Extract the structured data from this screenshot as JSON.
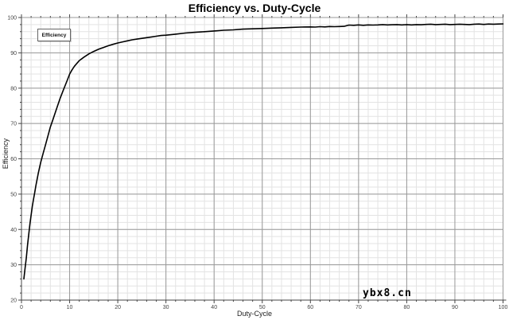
{
  "chart_data": {
    "type": "line",
    "title": "Efficiency vs. Duty-Cycle",
    "xlabel": "Duty-Cycle",
    "ylabel": "Efficiency",
    "xlim": [
      0,
      100
    ],
    "ylim": [
      20,
      100
    ],
    "x_major_ticks": [
      0,
      10,
      20,
      30,
      40,
      50,
      60,
      70,
      80,
      90,
      100
    ],
    "y_major_ticks": [
      20,
      30,
      40,
      50,
      60,
      70,
      80,
      90,
      100
    ],
    "minor_tick_step": 2,
    "grid": true,
    "legend": {
      "position": "top-left",
      "label": "Efficiency"
    },
    "watermark": "ybx8.cn",
    "colors": {
      "line": "#000000",
      "grid_major": "#999999",
      "grid_minor": "#e3e3e3",
      "axis": "#444444",
      "tick_label": "#444444",
      "title": "#000000",
      "background": "#ffffff"
    },
    "series": [
      {
        "name": "Efficiency",
        "points": [
          [
            0.5,
            26
          ],
          [
            0.75,
            29
          ],
          [
            1,
            32
          ],
          [
            1.25,
            35.5
          ],
          [
            1.5,
            38.5
          ],
          [
            1.75,
            41.5
          ],
          [
            2,
            44
          ],
          [
            2.25,
            46.5
          ],
          [
            2.5,
            48.5
          ],
          [
            2.75,
            50.5
          ],
          [
            3,
            52.5
          ],
          [
            3.5,
            56
          ],
          [
            4,
            59
          ],
          [
            4.5,
            61.5
          ],
          [
            5,
            64
          ],
          [
            5.5,
            66.5
          ],
          [
            6,
            69
          ],
          [
            6.5,
            71
          ],
          [
            7,
            73
          ],
          [
            7.5,
            75
          ],
          [
            8,
            77
          ],
          [
            8.5,
            78.8
          ],
          [
            9,
            80.5
          ],
          [
            9.5,
            82.2
          ],
          [
            10,
            84
          ],
          [
            10.5,
            85.2
          ],
          [
            11,
            86.2
          ],
          [
            11.5,
            87
          ],
          [
            12,
            87.8
          ],
          [
            13,
            88.8
          ],
          [
            14,
            89.7
          ],
          [
            15,
            90.4
          ],
          [
            16,
            91
          ],
          [
            17,
            91.5
          ],
          [
            18,
            92
          ],
          [
            19,
            92.4
          ],
          [
            20,
            92.8
          ],
          [
            21,
            93.1
          ],
          [
            22,
            93.4
          ],
          [
            23,
            93.7
          ],
          [
            24,
            93.9
          ],
          [
            25,
            94.1
          ],
          [
            26,
            94.3
          ],
          [
            27,
            94.5
          ],
          [
            28,
            94.7
          ],
          [
            29,
            94.9
          ],
          [
            30,
            95
          ],
          [
            32,
            95.3
          ],
          [
            34,
            95.6
          ],
          [
            36,
            95.8
          ],
          [
            38,
            96
          ],
          [
            40,
            96.2
          ],
          [
            42,
            96.4
          ],
          [
            44,
            96.5
          ],
          [
            46,
            96.7
          ],
          [
            48,
            96.8
          ],
          [
            50,
            96.9
          ],
          [
            52,
            97
          ],
          [
            54,
            97.1
          ],
          [
            56,
            97.2
          ],
          [
            58,
            97.3
          ],
          [
            60,
            97.35
          ],
          [
            61,
            97.3
          ],
          [
            62,
            97.4
          ],
          [
            63,
            97.35
          ],
          [
            64,
            97.45
          ],
          [
            65,
            97.4
          ],
          [
            66,
            97.45
          ],
          [
            67,
            97.5
          ],
          [
            68,
            97.85
          ],
          [
            69,
            97.8
          ],
          [
            70,
            97.9
          ],
          [
            71,
            97.8
          ],
          [
            72,
            97.9
          ],
          [
            73,
            97.85
          ],
          [
            74,
            97.9
          ],
          [
            75,
            98
          ],
          [
            76,
            97.9
          ],
          [
            77,
            97.95
          ],
          [
            78,
            98
          ],
          [
            79,
            97.9
          ],
          [
            80,
            98
          ],
          [
            81,
            97.9
          ],
          [
            82,
            98
          ],
          [
            83,
            97.95
          ],
          [
            84,
            98.05
          ],
          [
            85,
            98.1
          ],
          [
            86,
            98
          ],
          [
            87,
            98.05
          ],
          [
            88,
            98.1
          ],
          [
            89,
            98
          ],
          [
            90,
            98.05
          ],
          [
            91,
            98.1
          ],
          [
            92,
            98.05
          ],
          [
            93,
            98
          ],
          [
            94,
            98.1
          ],
          [
            95,
            98.15
          ],
          [
            96,
            98.05
          ],
          [
            97,
            98.15
          ],
          [
            98,
            98.1
          ],
          [
            99,
            98.15
          ],
          [
            100,
            98.2
          ]
        ]
      }
    ]
  }
}
